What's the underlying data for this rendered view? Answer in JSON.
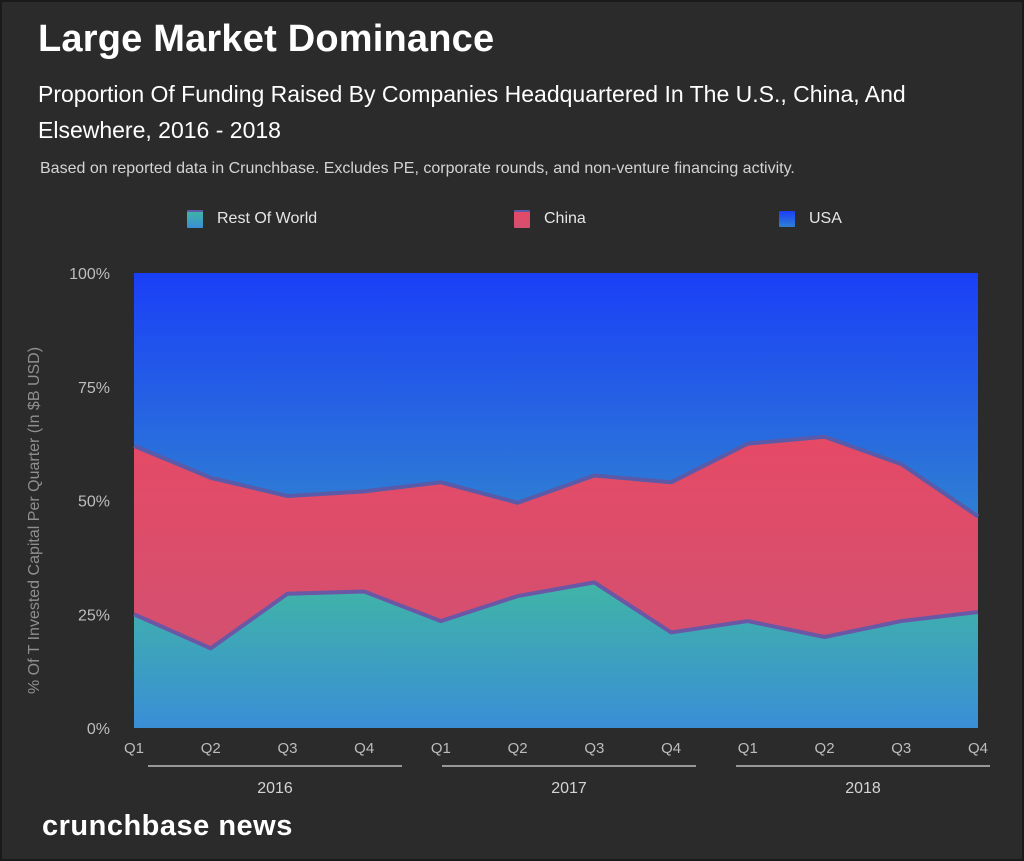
{
  "title": "Large Market Dominance",
  "subtitle": "Proportion Of Funding Raised By Companies Headquartered In The U.S., China, And Elsewhere, 2016 - 2018",
  "note": "Based on reported data in Crunchbase. Excludes PE, corporate rounds, and non-venture financing activity.",
  "brand": "crunchbase news",
  "colors": {
    "background": "#2b2b2b",
    "usa_top": "#1a3ff7",
    "usa_bottom": "#2f7fd3",
    "china_top": "#e54a66",
    "china_bottom": "#d35070",
    "row_top": "#3fb3a8",
    "row_bottom": "#3a8ed6",
    "boundary": "#5a5aa8",
    "axis_text": "#bdbdbd"
  },
  "chart_data": {
    "type": "area",
    "stacked": true,
    "percent": true,
    "title": "Large Market Dominance",
    "ylabel": "% Of T Invested Capital Per Quarter (In $B USD)",
    "xlabel": "",
    "ylim": [
      0,
      100
    ],
    "yticks": [
      0,
      25,
      50,
      75,
      100
    ],
    "ytick_labels": [
      "0%",
      "25%",
      "50%",
      "75%",
      "100%"
    ],
    "categories": [
      "Q1",
      "Q2",
      "Q3",
      "Q4",
      "Q1",
      "Q2",
      "Q3",
      "Q4",
      "Q1",
      "Q2",
      "Q3",
      "Q4"
    ],
    "groups": [
      {
        "label": "2016",
        "start": 0,
        "end": 3
      },
      {
        "label": "2017",
        "start": 4,
        "end": 7
      },
      {
        "label": "2018",
        "start": 8,
        "end": 11
      }
    ],
    "legend_position": "top",
    "series": [
      {
        "name": "Rest Of World",
        "values": [
          25,
          17.5,
          29.5,
          30,
          23.5,
          29,
          32,
          21,
          23.5,
          20,
          23.5,
          25.5
        ]
      },
      {
        "name": "China",
        "values": [
          37,
          37.5,
          21.5,
          22,
          30.5,
          20.5,
          23.5,
          33,
          39,
          44,
          34.5,
          21
        ]
      },
      {
        "name": "USA",
        "values": [
          38,
          45,
          49,
          48,
          46,
          50.5,
          44.5,
          46,
          37.5,
          36,
          42,
          53.5
        ]
      }
    ]
  }
}
